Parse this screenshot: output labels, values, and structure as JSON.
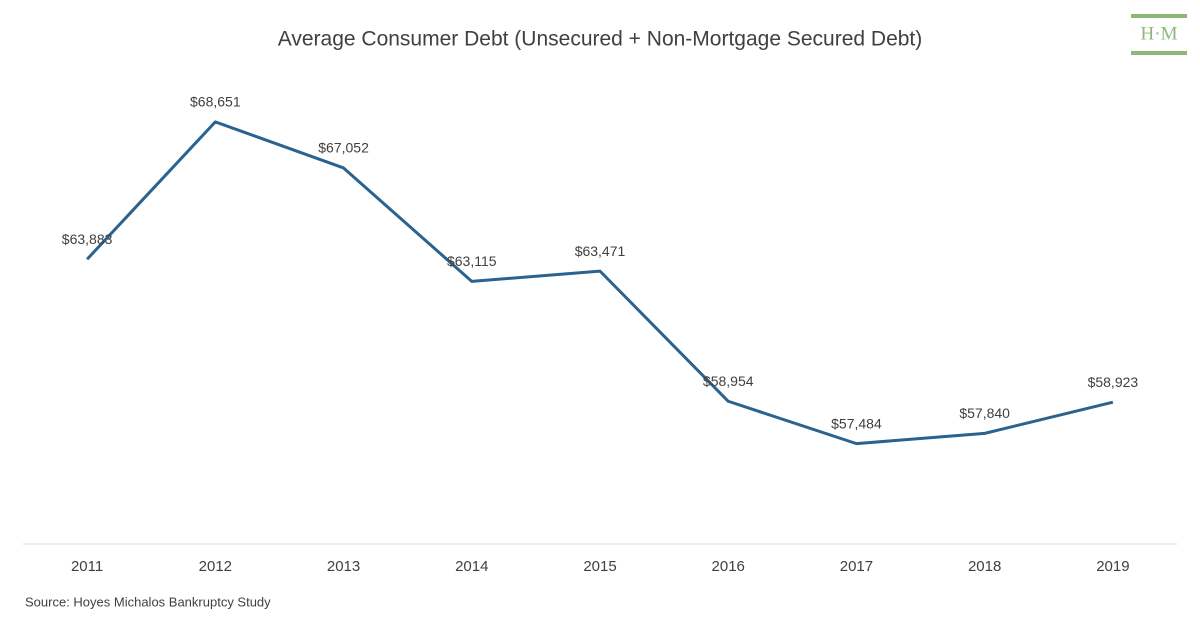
{
  "chart_data": {
    "type": "line",
    "title": "Average Consumer Debt (Unsecured + Non-Mortgage Secured Debt)",
    "categories": [
      "2011",
      "2012",
      "2013",
      "2014",
      "2015",
      "2016",
      "2017",
      "2018",
      "2019"
    ],
    "values": [
      63883,
      68651,
      67052,
      63115,
      63471,
      58954,
      57484,
      57840,
      58923
    ],
    "value_labels": [
      "$63,883",
      "$68,651",
      "$67,052",
      "$63,115",
      "$63,471",
      "$58,954",
      "$57,484",
      "$57,840",
      "$58,923"
    ],
    "color": "#2a6290",
    "ylim": [
      54000,
      70000
    ],
    "source": "Source: Hoyes Michalos Bankruptcy Study",
    "logo": "H·M"
  }
}
